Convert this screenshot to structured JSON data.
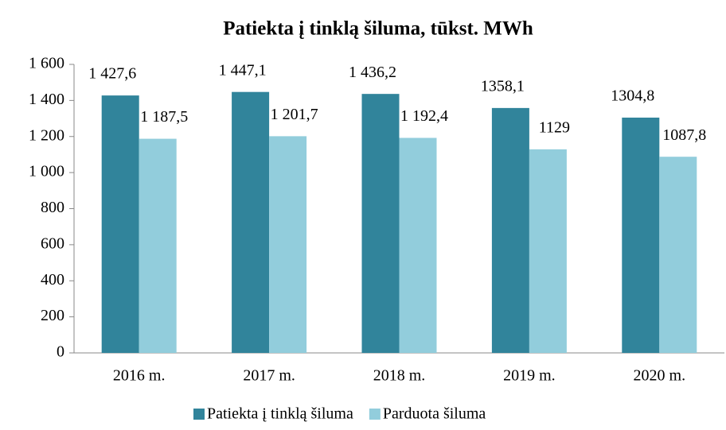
{
  "chart_data": {
    "type": "bar",
    "title": "Patiekta į tinklą šiluma, tūkst. MWh",
    "categories": [
      "2016 m.",
      "2017 m.",
      "2018 m.",
      "2019 m.",
      "2020 m."
    ],
    "series": [
      {
        "name": "Patiekta į tinklą šiluma",
        "color": "#31849b",
        "values": [
          1427.6,
          1447.1,
          1436.2,
          1358.1,
          1304.8
        ],
        "value_labels": [
          "1 427,6",
          "1 447,1",
          "1 436,2",
          "1358,1",
          "1304,8"
        ]
      },
      {
        "name": "Parduota šiluma",
        "color": "#92cddc",
        "values": [
          1187.5,
          1201.7,
          1192.4,
          1129,
          1087.8
        ],
        "value_labels": [
          "1 187,5",
          "1 201,7",
          "1 192,4",
          "1129",
          "1087,8"
        ]
      }
    ],
    "ylim": [
      0,
      1600
    ],
    "yticks": [
      0,
      200,
      400,
      600,
      800,
      {
        "value": 1000,
        "label": "1 000"
      },
      {
        "value": 1200,
        "label": "1 200"
      },
      {
        "value": 1400,
        "label": "1 400"
      },
      {
        "value": 1600,
        "label": "1 600"
      }
    ],
    "legend": "bottom"
  }
}
